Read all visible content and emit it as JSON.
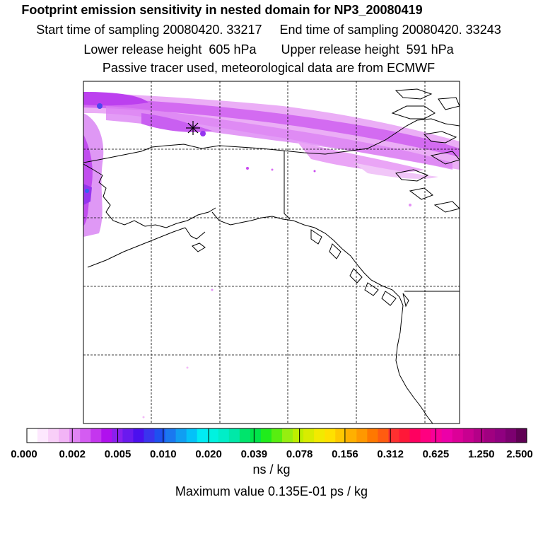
{
  "header": {
    "title": "Footprint emission sensitivity in nested domain for NP3_20080419",
    "start_time": "Start time of sampling 20080420. 33217",
    "end_time": "End time of sampling 20080420. 33243",
    "lower_release": "Lower release height  605 hPa",
    "upper_release": "Upper release height  591 hPa",
    "tracer_note": "Passive tracer used, meteorological data are from ECMWF"
  },
  "map": {
    "release_marker": "star-marker",
    "graticule_lines": "dashed"
  },
  "colorbar": {
    "tick_labels": [
      "0.000",
      "0.002",
      "0.005",
      "0.010",
      "0.020",
      "0.039",
      "0.078",
      "0.156",
      "0.312",
      "0.625",
      "1.250",
      "2.500"
    ],
    "colors": [
      "#ffffff",
      "#fde8fe",
      "#f8cff8",
      "#f2b4f6",
      "#e184f4",
      "#d45cf2",
      "#c436ee",
      "#b010ee",
      "#8a20ee",
      "#6a1aee",
      "#4b10ee",
      "#3a34ee",
      "#1e50f0",
      "#1a78f0",
      "#109ef2",
      "#04c2f8",
      "#00ecf4",
      "#00f2e0",
      "#00eec8",
      "#00e8a8",
      "#00e46c",
      "#00e44a",
      "#20ec1c",
      "#58ee10",
      "#96ee10",
      "#beee00",
      "#d8ec00",
      "#f2ea00",
      "#ffe000",
      "#ffc800",
      "#ffb000",
      "#ff9800",
      "#ff7800",
      "#ff5c10",
      "#ff3030",
      "#ff1838",
      "#ff0060",
      "#ff0080",
      "#f80098",
      "#ec00a8",
      "#dc0098",
      "#c80090",
      "#b40088",
      "#a00080",
      "#900080",
      "#7c0070",
      "#600054"
    ],
    "units": "ns / kg",
    "max_value": "Maximum value  0.135E-01 ps / kg"
  }
}
